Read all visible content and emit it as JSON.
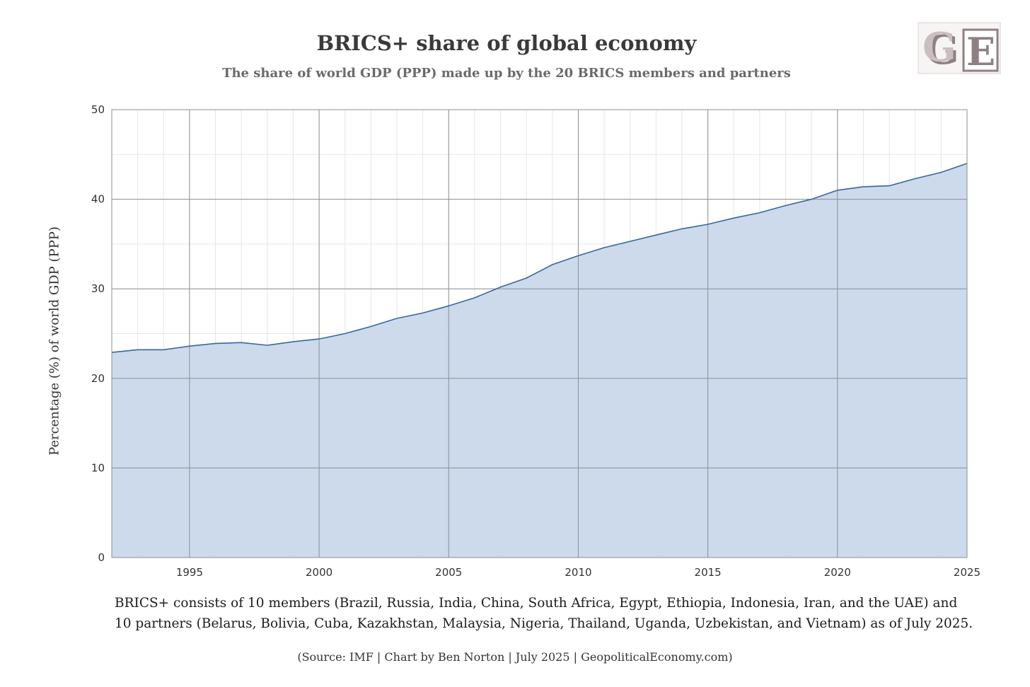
{
  "chart_data": {
    "type": "area",
    "title": "BRICS+ share of global economy",
    "subtitle": "The share of world GDP (PPP) made up by the 20 BRICS members and partners",
    "xlabel": "",
    "ylabel": "Percentage (%) of world GDP (PPP)",
    "xlim": [
      1992,
      2025
    ],
    "ylim": [
      0,
      50
    ],
    "x_ticks": [
      1995,
      2000,
      2005,
      2010,
      2015,
      2020,
      2025
    ],
    "y_ticks": [
      0,
      10,
      20,
      30,
      40,
      50
    ],
    "grid": true,
    "legend": "none",
    "series": [
      {
        "x": [
          1992,
          1993,
          1994,
          1995,
          1996,
          1997,
          1998,
          1999,
          2000,
          2001,
          2002,
          2003,
          2004,
          2005,
          2006,
          2007,
          2008,
          2009,
          2010,
          2011,
          2012,
          2013,
          2014,
          2015,
          2016,
          2017,
          2018,
          2019,
          2020,
          2021,
          2022,
          2023,
          2024,
          2025
        ],
        "values": [
          22.9,
          23.2,
          23.2,
          23.6,
          23.9,
          24.0,
          23.7,
          24.1,
          24.4,
          25.0,
          25.8,
          26.7,
          27.3,
          28.1,
          29.0,
          30.2,
          31.2,
          32.7,
          33.7,
          34.6,
          35.3,
          36.0,
          36.7,
          37.2,
          37.9,
          38.5,
          39.3,
          40.0,
          41.0,
          41.4,
          41.5,
          42.3,
          43.0,
          44.0
        ]
      }
    ],
    "colors": {
      "fill": "#c9d8ea",
      "line": "#3867a0",
      "grid_major": "#8a8f96",
      "grid_minor": "#e6e6e6"
    }
  },
  "footnote": {
    "line1": "BRICS+ consists of 10 members (Brazil, Russia, India, China, South Africa, Egypt, Ethiopia, Indonesia, Iran, and the UAE) and",
    "line2": "10 partners (Belarus, Bolivia, Cuba, Kazakhstan, Malaysia, Nigeria, Thailand, Uganda, Uzbekistan, and Vietnam) as of July 2025."
  },
  "source": "(Source: IMF | Chart by Ben Norton | July 2025 | GeopoliticalEconomy.com)",
  "logo": {
    "text": "GE"
  }
}
